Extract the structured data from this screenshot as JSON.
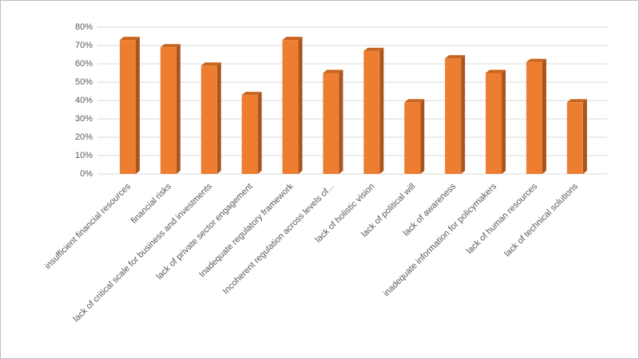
{
  "chart_data": {
    "type": "bar",
    "categories": [
      "insufficient financial resources",
      "financial risks",
      "lack of critical scale for business and investments",
      "lack of private sector engagement",
      "Inadequate regulatory framework",
      "Incoherent regulation across levels of...",
      "lack of holistic vision",
      "lack of political will",
      "lack of awareness",
      "inadequate information for policymakers",
      "lack of human resources",
      "lack of technical solutions"
    ],
    "values": [
      73,
      69,
      59,
      43,
      73,
      55,
      67,
      39,
      63,
      55,
      61,
      39
    ],
    "color": "#ed7d31",
    "ylim": [
      0,
      80
    ],
    "yticks": [
      {
        "value": 0,
        "label": "0%"
      },
      {
        "value": 10,
        "label": "10%"
      },
      {
        "value": 20,
        "label": "20%"
      },
      {
        "value": 30,
        "label": "30%"
      },
      {
        "value": 40,
        "label": "40%"
      },
      {
        "value": 50,
        "label": "50%"
      },
      {
        "value": 60,
        "label": "60%"
      },
      {
        "value": 70,
        "label": "70%"
      },
      {
        "value": 80,
        "label": "80%"
      }
    ],
    "grid": true
  }
}
